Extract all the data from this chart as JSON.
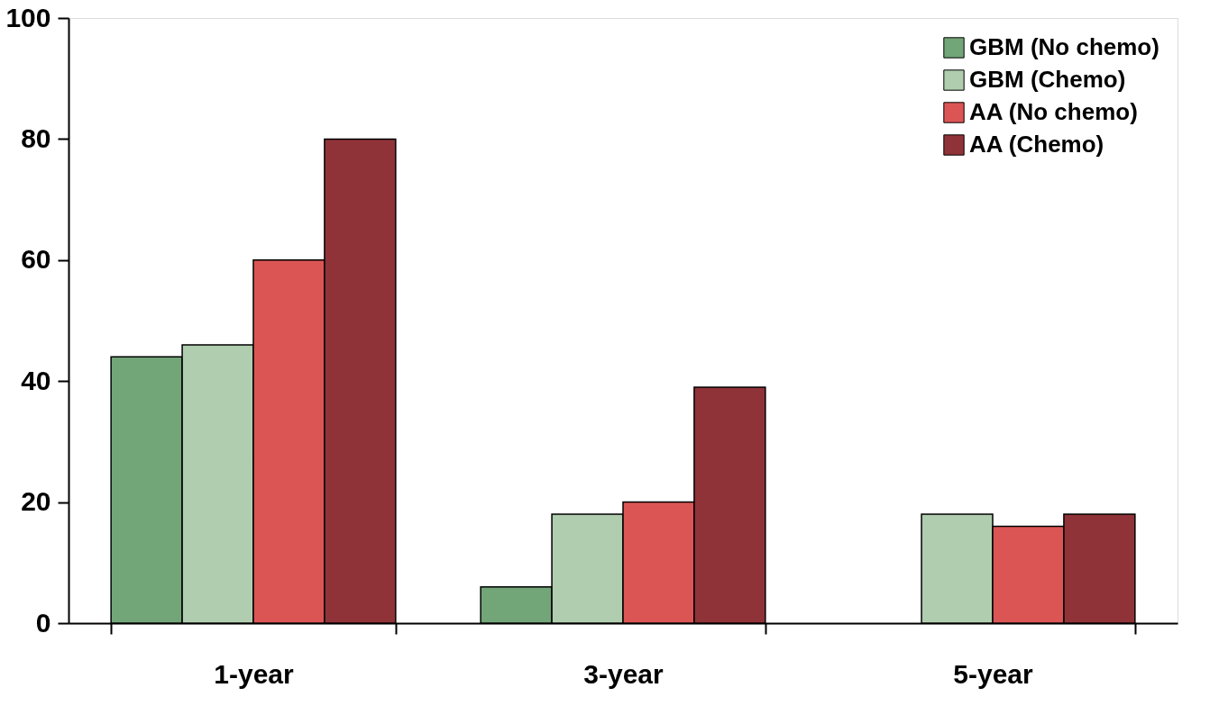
{
  "chart_data": {
    "type": "bar",
    "categories": [
      "1-year",
      "3-year",
      "5-year"
    ],
    "series": [
      {
        "name": "GBM (No chemo)",
        "color": "#72a577",
        "values": [
          44,
          6,
          null
        ]
      },
      {
        "name": "GBM (Chemo)",
        "color": "#b0cdb0",
        "values": [
          46,
          18,
          18
        ]
      },
      {
        "name": "AA (No chemo)",
        "color": "#dc5555",
        "values": [
          60,
          20,
          16
        ]
      },
      {
        "name": "AA (Chemo)",
        "color": "#903338",
        "values": [
          80,
          39,
          18
        ]
      }
    ],
    "ylim": [
      0,
      100
    ],
    "yticks": [
      0,
      20,
      40,
      60,
      80,
      100
    ],
    "grid": false,
    "legend": "top right"
  }
}
